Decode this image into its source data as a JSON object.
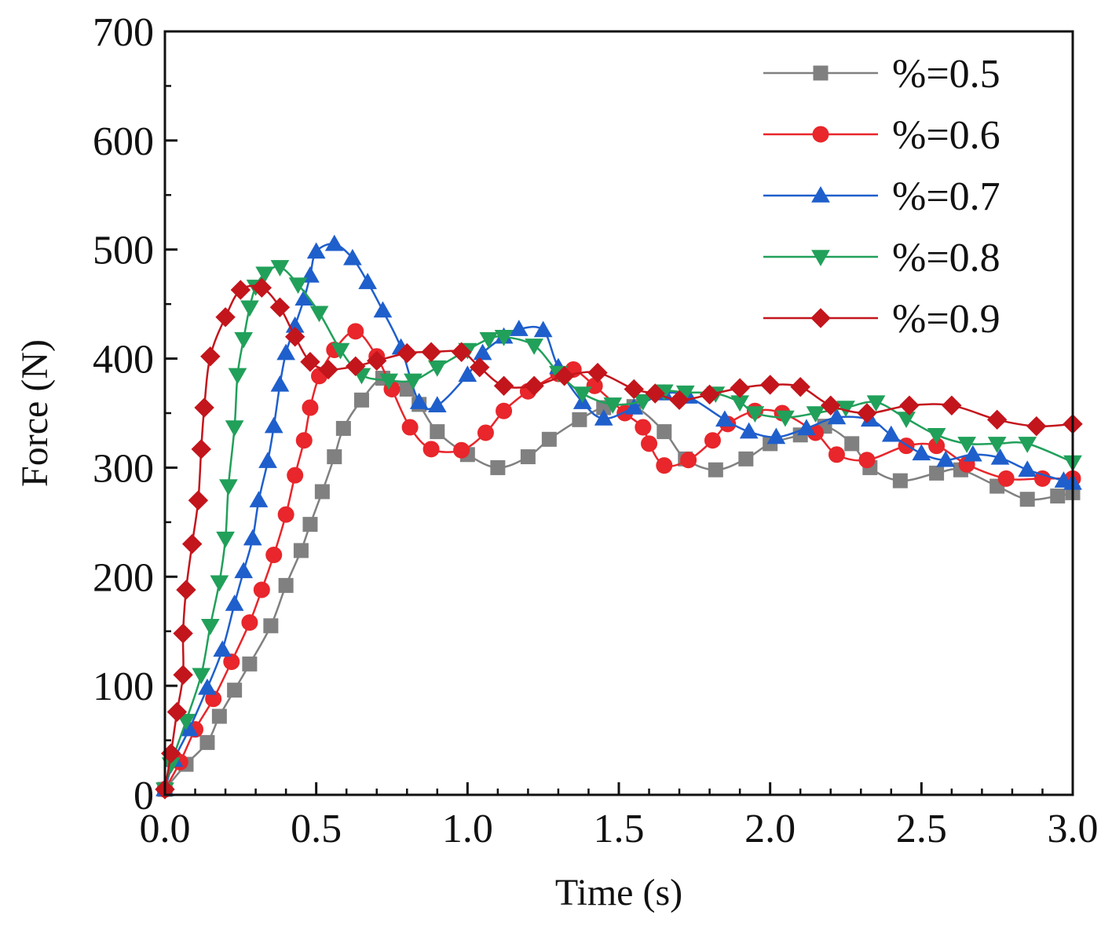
{
  "chart_data": {
    "type": "line",
    "title": "",
    "xlabel": "Time (s)",
    "ylabel": "Force (N)",
    "xlim": [
      0,
      3.0
    ],
    "ylim": [
      0,
      700
    ],
    "xticks": [
      "0.0",
      "0.5",
      "1.0",
      "1.5",
      "2.0",
      "2.5",
      "3.0"
    ],
    "yticks": [
      "0",
      "100",
      "200",
      "300",
      "400",
      "500",
      "600",
      "700"
    ],
    "grid": false,
    "legend_position": "top-right",
    "series": [
      {
        "name": "%=0.5",
        "color": "#808080",
        "marker": "square",
        "points": [
          [
            0,
            5
          ],
          [
            0.07,
            28
          ],
          [
            0.14,
            48
          ],
          [
            0.18,
            72
          ],
          [
            0.23,
            96
          ],
          [
            0.28,
            120
          ],
          [
            0.35,
            155
          ],
          [
            0.4,
            192
          ],
          [
            0.45,
            224
          ],
          [
            0.48,
            248
          ],
          [
            0.52,
            278
          ],
          [
            0.56,
            310
          ],
          [
            0.59,
            336
          ],
          [
            0.65,
            362
          ],
          [
            0.72,
            382
          ],
          [
            0.8,
            372
          ],
          [
            0.84,
            358
          ],
          [
            0.9,
            333
          ],
          [
            1.0,
            312
          ],
          [
            1.1,
            300
          ],
          [
            1.2,
            310
          ],
          [
            1.27,
            326
          ],
          [
            1.37,
            344
          ],
          [
            1.45,
            355
          ],
          [
            1.55,
            356
          ],
          [
            1.65,
            333
          ],
          [
            1.72,
            308
          ],
          [
            1.82,
            298
          ],
          [
            1.92,
            308
          ],
          [
            2.0,
            322
          ],
          [
            2.1,
            330
          ],
          [
            2.18,
            338
          ],
          [
            2.27,
            322
          ],
          [
            2.33,
            300
          ],
          [
            2.43,
            288
          ],
          [
            2.55,
            295
          ],
          [
            2.63,
            298
          ],
          [
            2.75,
            283
          ],
          [
            2.85,
            271
          ],
          [
            2.95,
            274
          ],
          [
            3.0,
            277
          ]
        ]
      },
      {
        "name": "%=0.6",
        "color": "#e8262b",
        "marker": "circle",
        "points": [
          [
            0,
            5
          ],
          [
            0.05,
            30
          ],
          [
            0.1,
            60
          ],
          [
            0.16,
            88
          ],
          [
            0.22,
            122
          ],
          [
            0.28,
            158
          ],
          [
            0.32,
            188
          ],
          [
            0.36,
            220
          ],
          [
            0.4,
            257
          ],
          [
            0.43,
            293
          ],
          [
            0.46,
            325
          ],
          [
            0.48,
            355
          ],
          [
            0.51,
            384
          ],
          [
            0.56,
            408
          ],
          [
            0.63,
            425
          ],
          [
            0.7,
            402
          ],
          [
            0.75,
            372
          ],
          [
            0.81,
            337
          ],
          [
            0.88,
            317
          ],
          [
            0.98,
            316
          ],
          [
            1.06,
            332
          ],
          [
            1.12,
            352
          ],
          [
            1.2,
            370
          ],
          [
            1.3,
            386
          ],
          [
            1.35,
            390
          ],
          [
            1.42,
            375
          ],
          [
            1.52,
            350
          ],
          [
            1.58,
            337
          ],
          [
            1.6,
            322
          ],
          [
            1.65,
            302
          ],
          [
            1.73,
            307
          ],
          [
            1.81,
            325
          ],
          [
            1.86,
            340
          ],
          [
            1.95,
            352
          ],
          [
            2.04,
            350
          ],
          [
            2.15,
            332
          ],
          [
            2.22,
            312
          ],
          [
            2.32,
            307
          ],
          [
            2.45,
            320
          ],
          [
            2.55,
            320
          ],
          [
            2.65,
            303
          ],
          [
            2.78,
            290
          ],
          [
            2.9,
            290
          ],
          [
            3.0,
            290
          ]
        ]
      },
      {
        "name": "%=0.7",
        "color": "#1f5fcc",
        "marker": "triangle-up",
        "points": [
          [
            0,
            5
          ],
          [
            0.03,
            32
          ],
          [
            0.08,
            60
          ],
          [
            0.14,
            98
          ],
          [
            0.19,
            133
          ],
          [
            0.23,
            175
          ],
          [
            0.26,
            205
          ],
          [
            0.29,
            235
          ],
          [
            0.31,
            270
          ],
          [
            0.34,
            306
          ],
          [
            0.36,
            338
          ],
          [
            0.38,
            376
          ],
          [
            0.4,
            405
          ],
          [
            0.43,
            430
          ],
          [
            0.46,
            455
          ],
          [
            0.48,
            476
          ],
          [
            0.5,
            498
          ],
          [
            0.56,
            505
          ],
          [
            0.62,
            492
          ],
          [
            0.67,
            470
          ],
          [
            0.72,
            444
          ],
          [
            0.78,
            410
          ],
          [
            0.84,
            360
          ],
          [
            0.9,
            357
          ],
          [
            1.0,
            385
          ],
          [
            1.05,
            405
          ],
          [
            1.12,
            420
          ],
          [
            1.17,
            427
          ],
          [
            1.25,
            426
          ],
          [
            1.3,
            392
          ],
          [
            1.38,
            360
          ],
          [
            1.45,
            345
          ],
          [
            1.55,
            355
          ],
          [
            1.65,
            368
          ],
          [
            1.73,
            365
          ],
          [
            1.85,
            344
          ],
          [
            1.93,
            333
          ],
          [
            2.02,
            328
          ],
          [
            2.12,
            336
          ],
          [
            2.22,
            346
          ],
          [
            2.33,
            344
          ],
          [
            2.4,
            330
          ],
          [
            2.5,
            313
          ],
          [
            2.58,
            307
          ],
          [
            2.67,
            312
          ],
          [
            2.76,
            309
          ],
          [
            2.85,
            298
          ],
          [
            2.97,
            288
          ],
          [
            3.0,
            286
          ]
        ]
      },
      {
        "name": "%=0.8",
        "color": "#21a05a",
        "marker": "triangle-down",
        "points": [
          [
            0,
            5
          ],
          [
            0.02,
            28
          ],
          [
            0.07,
            68
          ],
          [
            0.12,
            110
          ],
          [
            0.15,
            155
          ],
          [
            0.18,
            195
          ],
          [
            0.2,
            235
          ],
          [
            0.21,
            283
          ],
          [
            0.23,
            337
          ],
          [
            0.24,
            385
          ],
          [
            0.26,
            418
          ],
          [
            0.28,
            447
          ],
          [
            0.3,
            466
          ],
          [
            0.33,
            478
          ],
          [
            0.38,
            484
          ],
          [
            0.44,
            468
          ],
          [
            0.51,
            442
          ],
          [
            0.58,
            408
          ],
          [
            0.65,
            385
          ],
          [
            0.74,
            380
          ],
          [
            0.82,
            380
          ],
          [
            0.9,
            392
          ],
          [
            1.0,
            408
          ],
          [
            1.07,
            418
          ],
          [
            1.12,
            420
          ],
          [
            1.22,
            412
          ],
          [
            1.3,
            387
          ],
          [
            1.38,
            368
          ],
          [
            1.48,
            358
          ],
          [
            1.58,
            361
          ],
          [
            1.65,
            370
          ],
          [
            1.72,
            369
          ],
          [
            1.82,
            368
          ],
          [
            1.9,
            360
          ],
          [
            1.95,
            350
          ],
          [
            2.05,
            346
          ],
          [
            2.15,
            350
          ],
          [
            2.25,
            355
          ],
          [
            2.35,
            360
          ],
          [
            2.45,
            345
          ],
          [
            2.55,
            330
          ],
          [
            2.65,
            322
          ],
          [
            2.75,
            322
          ],
          [
            2.85,
            322
          ],
          [
            3.0,
            305
          ]
        ]
      },
      {
        "name": "%=0.9",
        "color": "#c3151c",
        "marker": "diamond",
        "points": [
          [
            0,
            5
          ],
          [
            0.02,
            38
          ],
          [
            0.04,
            76
          ],
          [
            0.06,
            110
          ],
          [
            0.06,
            148
          ],
          [
            0.07,
            188
          ],
          [
            0.09,
            230
          ],
          [
            0.11,
            270
          ],
          [
            0.12,
            317
          ],
          [
            0.13,
            355
          ],
          [
            0.15,
            402
          ],
          [
            0.2,
            438
          ],
          [
            0.25,
            463
          ],
          [
            0.32,
            465
          ],
          [
            0.38,
            447
          ],
          [
            0.43,
            420
          ],
          [
            0.48,
            397
          ],
          [
            0.54,
            390
          ],
          [
            0.63,
            393
          ],
          [
            0.7,
            398
          ],
          [
            0.8,
            405
          ],
          [
            0.88,
            406
          ],
          [
            0.98,
            406
          ],
          [
            1.04,
            392
          ],
          [
            1.12,
            375
          ],
          [
            1.22,
            375
          ],
          [
            1.32,
            384
          ],
          [
            1.43,
            387
          ],
          [
            1.55,
            372
          ],
          [
            1.62,
            368
          ],
          [
            1.7,
            362
          ],
          [
            1.8,
            367
          ],
          [
            1.9,
            373
          ],
          [
            2.0,
            376
          ],
          [
            2.1,
            374
          ],
          [
            2.2,
            357
          ],
          [
            2.32,
            350
          ],
          [
            2.46,
            357
          ],
          [
            2.6,
            357
          ],
          [
            2.75,
            344
          ],
          [
            2.88,
            338
          ],
          [
            3.0,
            340
          ]
        ]
      }
    ]
  }
}
